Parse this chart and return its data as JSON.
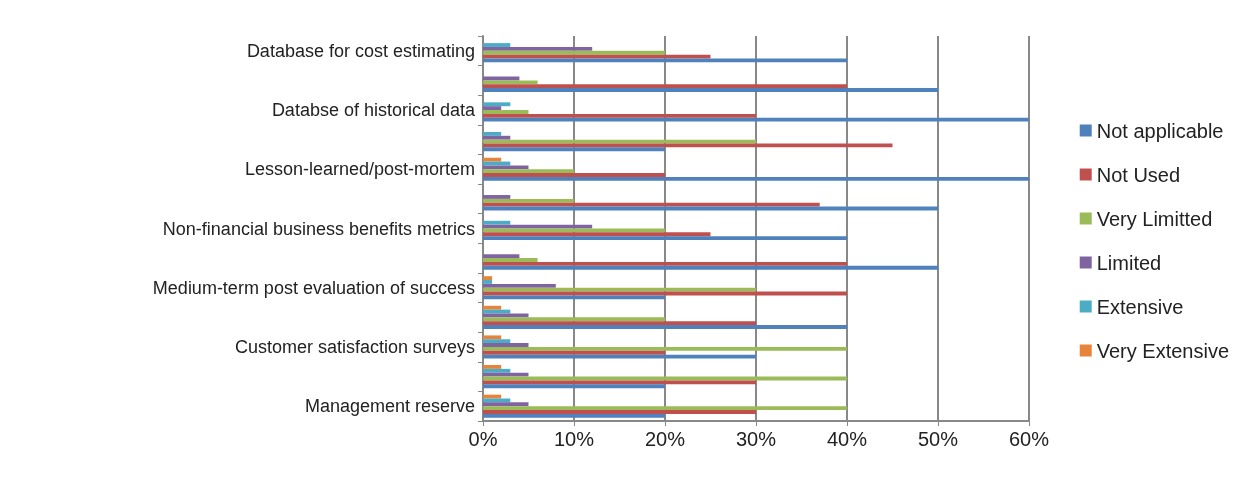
{
  "chart_data": {
    "type": "bar",
    "orientation": "horizontal",
    "categories": [
      "Database for cost estimating",
      null,
      "Databse of historical data",
      null,
      "Lesson-learned/post-mortem",
      null,
      "Non-financial business benefits metrics",
      null,
      "Medium-term post evaluation of success",
      null,
      "Customer satisfaction surveys",
      null,
      "Management reserve"
    ],
    "series": [
      {
        "name": "Very Extensive",
        "color": "#e8843a",
        "values": [
          0,
          0,
          0,
          0,
          2,
          0,
          0,
          0,
          1,
          2,
          2,
          2,
          2
        ]
      },
      {
        "name": "Extensive",
        "color": "#4bacc6",
        "values": [
          3,
          0,
          3,
          2,
          3,
          0,
          3,
          0,
          1,
          3,
          3,
          3,
          3
        ]
      },
      {
        "name": "Limited",
        "color": "#8064a2",
        "values": [
          12,
          4,
          2,
          3,
          5,
          3,
          12,
          4,
          8,
          5,
          5,
          5,
          5
        ]
      },
      {
        "name": "Very Limitted",
        "color": "#9bbb59",
        "values": [
          20,
          6,
          5,
          30,
          10,
          10,
          20,
          6,
          30,
          20,
          40,
          40,
          40
        ]
      },
      {
        "name": "Not Used",
        "color": "#c0504d",
        "values": [
          25,
          40,
          30,
          45,
          20,
          37,
          25,
          40,
          40,
          30,
          20,
          30,
          30
        ]
      },
      {
        "name": "Not applicable",
        "color": "#4f81bd",
        "values": [
          40,
          50,
          60,
          20,
          60,
          50,
          40,
          50,
          20,
          40,
          30,
          20,
          20
        ]
      }
    ],
    "xlim": [
      0,
      60
    ],
    "xticks": [
      {
        "value": 0,
        "label": "0%"
      },
      {
        "value": 10,
        "label": "10%"
      },
      {
        "value": 20,
        "label": "20%"
      },
      {
        "value": 30,
        "label": "30%"
      },
      {
        "value": 40,
        "label": "40%"
      },
      {
        "value": 50,
        "label": "50%"
      },
      {
        "value": 60,
        "label": "60%"
      }
    ],
    "grid": "x",
    "legend": "right"
  }
}
